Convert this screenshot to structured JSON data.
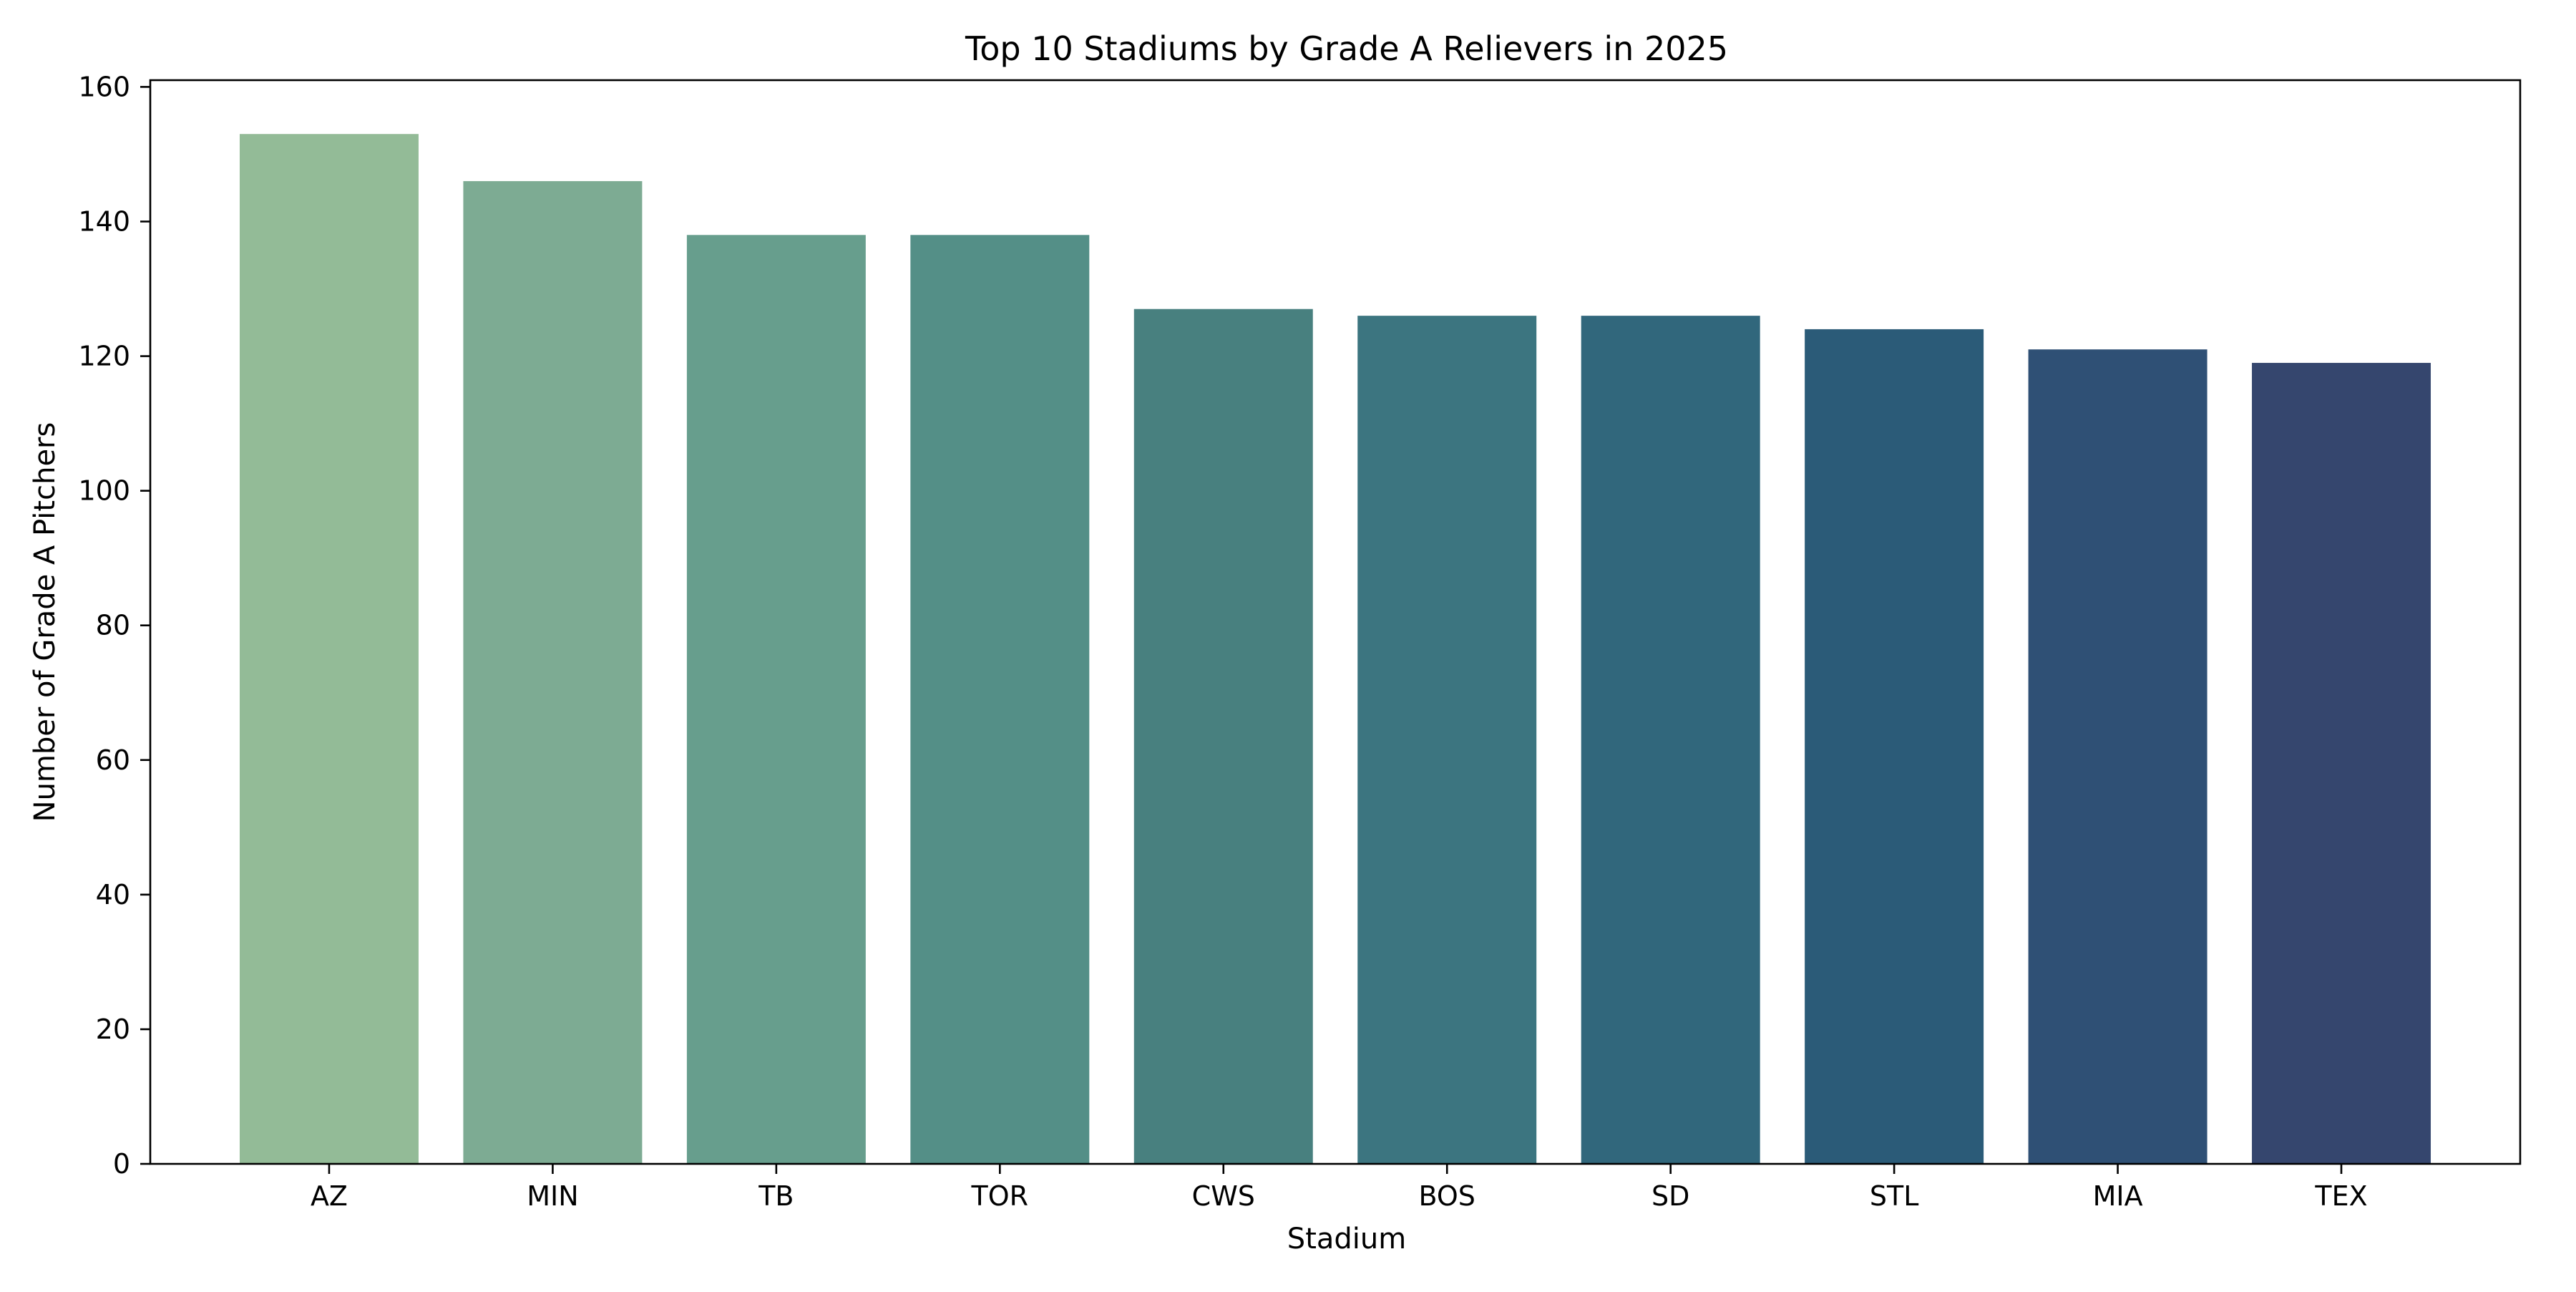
{
  "chart_data": {
    "type": "bar",
    "title": "Top 10 Stadiums by Grade A Relievers in 2025",
    "xlabel": "Stadium",
    "ylabel": "Number of Grade A Pitchers",
    "categories": [
      "AZ",
      "MIN",
      "TB",
      "TOR",
      "CWS",
      "BOS",
      "SD",
      "STL",
      "MIA",
      "TEX"
    ],
    "values": [
      153,
      146,
      138,
      138,
      127,
      126,
      126,
      124,
      121,
      119
    ],
    "ylim": [
      0,
      161
    ],
    "yticks": [
      0,
      20,
      40,
      60,
      80,
      100,
      120,
      140,
      160
    ],
    "grid": false,
    "legend": "none",
    "colors": [
      "#93bb97",
      "#7dab93",
      "#679e8d",
      "#548f87",
      "#48807f",
      "#3c7580",
      "#31677c",
      "#2b5b78",
      "#2f5075",
      "#35466e"
    ]
  }
}
